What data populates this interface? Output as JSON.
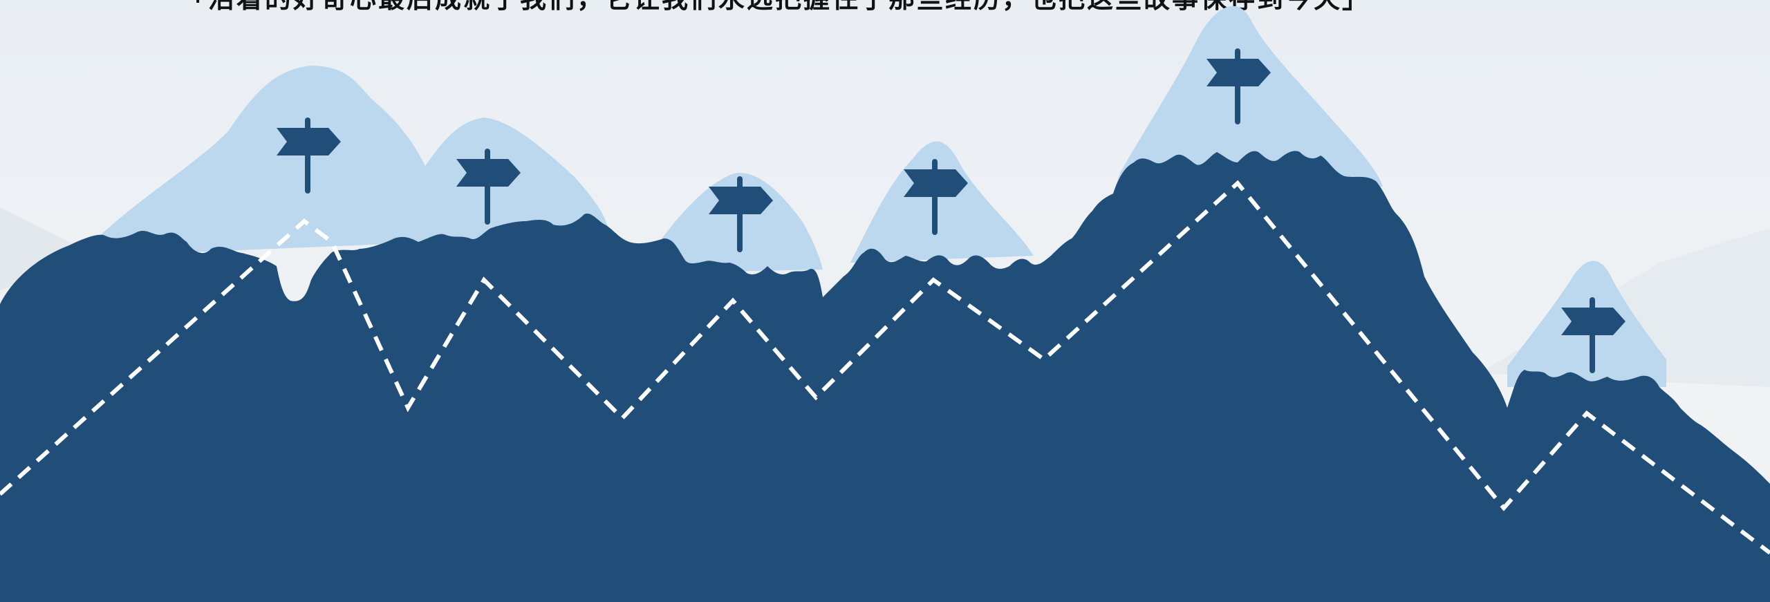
{
  "headline": "「活着的好奇心最后成就了我们，它让我们永远把握住了那些经历，也把这些故事保存到今天」",
  "colors": {
    "background": "#eef1f4",
    "mountain_body": "#214e78",
    "snow_cap": "#bcd8ee",
    "signpost": "#214e78",
    "trail": "#ffffff"
  },
  "icons": {
    "peak_marker": "signpost-icon"
  }
}
